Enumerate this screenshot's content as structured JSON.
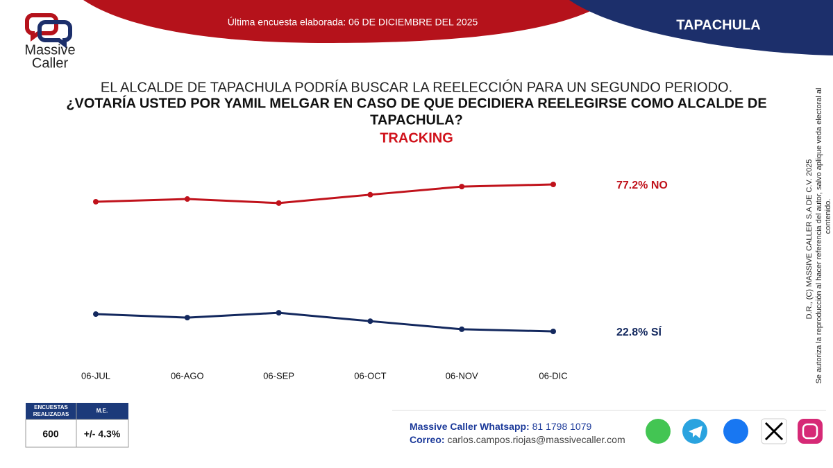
{
  "header": {
    "brand_line1": "Massive",
    "brand_line2": "Caller",
    "survey_date": "Última encuesta elaborada: 06 DE DICIEMBRE DEL 2025",
    "place": "TAPACHULA"
  },
  "chart_data": {
    "type": "line",
    "title_lines": [
      "EL ALCALDE DE TAPACHULA PODRÍA BUSCAR LA REELECCIÓN PARA UN SEGUNDO PERIODO.",
      "¿VOTARÍA USTED POR YAMIL MELGAR EN CASO DE QUE DECIDIERA REELEGIRSE COMO ALCALDE DE",
      "TAPACHULA?"
    ],
    "subtitle": "TRACKING",
    "categories": [
      "06-JUL",
      "06-AGO",
      "06-SEP",
      "06-OCT",
      "06-NOV",
      "06-DIC"
    ],
    "series": [
      {
        "color": "#c0121b",
        "values": [
          70.8,
          71.8,
          70.3,
          73.4,
          76.4,
          77.2
        ],
        "value_labels": [
          null,
          null,
          null,
          null,
          null,
          "77.2% NO"
        ]
      },
      {
        "color": "#13285e",
        "values": [
          29.2,
          27.9,
          29.7,
          26.6,
          23.6,
          22.8
        ],
        "value_labels": [
          null,
          null,
          null,
          null,
          null,
          "22.8% SÍ"
        ]
      }
    ]
  },
  "table": {
    "header": [
      "ENCUESTAS REALIZADAS",
      "M.E."
    ],
    "rows": [
      [
        "600",
        "+/- 4.3%"
      ]
    ]
  },
  "footer": {
    "whatsapp_label": "Massive Caller Whatsapp:",
    "whatsapp": "81 1798 1079",
    "email_label": "Correo:",
    "email": "carlos.campos.riojas@massivecaller.com"
  },
  "side_note": [
    "D.R., (C) MASSIVE CALLER S.A DE C.V. 2025",
    "Se autoriza la reproducción al hacer referencia del autor, salvo aplique veda electoral al",
    "contenido."
  ]
}
